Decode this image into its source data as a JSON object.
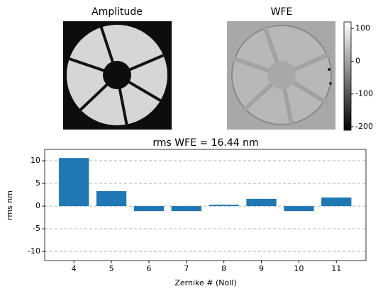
{
  "chart_data": [
    {
      "type": "image",
      "title": "Amplitude"
    },
    {
      "type": "image",
      "title": "WFE",
      "colorbar": {
        "clim": [
          -211,
          120
        ],
        "ticks": [
          100,
          0,
          -100,
          -200
        ]
      }
    },
    {
      "type": "bar",
      "title": "rms WFE = 16.44 nm",
      "xlabel": "Zernike # (Noll)",
      "ylabel": "rms nm",
      "x": [
        4,
        5,
        6,
        7,
        8,
        9,
        10,
        11
      ],
      "values": [
        10.6,
        3.3,
        -1.1,
        -1.1,
        0.3,
        1.6,
        -1.1,
        1.9
      ],
      "color": "#1f77b4",
      "xlim": [
        3.22,
        11.79
      ],
      "ylim": [
        -12,
        12.5
      ],
      "yticks": [
        -10,
        -5,
        0,
        5,
        10
      ],
      "grid": true
    }
  ]
}
